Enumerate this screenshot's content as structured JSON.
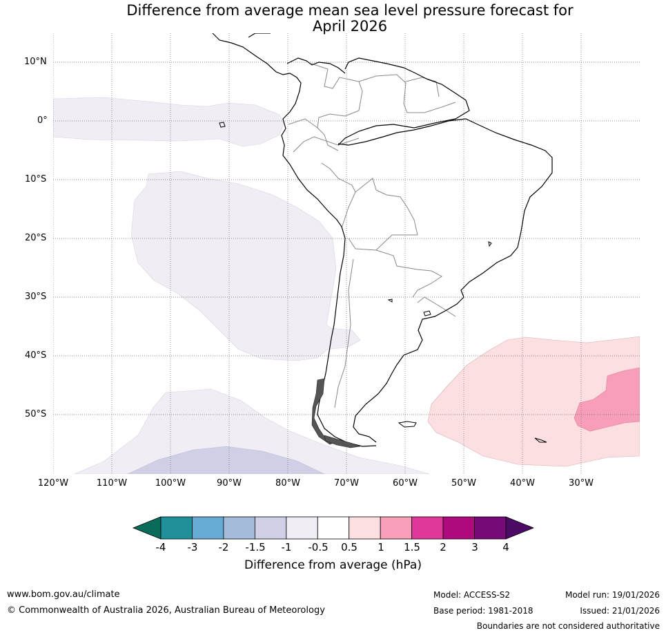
{
  "title": {
    "line1": "Difference from average mean sea level pressure forecast for",
    "line2": "April 2026"
  },
  "map": {
    "latitude_labels": [
      "10°N",
      "0°",
      "10°S",
      "20°S",
      "30°S",
      "40°S",
      "50°S"
    ],
    "longitude_labels": [
      "120°W",
      "110°W",
      "100°W",
      "90°W",
      "80°W",
      "70°W",
      "60°W",
      "50°W",
      "40°W",
      "30°W"
    ],
    "anomaly_regions": [
      {
        "description": "equatorial Pacific",
        "range": "-1 to -0.5",
        "color": "#f1edf5"
      },
      {
        "description": "southeast Pacific",
        "range": "-1 to -0.5",
        "color": "#f1edf5"
      },
      {
        "description": "far south Pacific",
        "range": "-1 to -0.5",
        "color": "#f1edf5"
      },
      {
        "description": "far south Pacific core",
        "range": "-1.5 to -1",
        "color": "#cfd0e6"
      },
      {
        "description": "south Atlantic",
        "range": "0.5 to 1",
        "color": "#fcdfe1"
      },
      {
        "description": "south Atlantic core",
        "range": "1 to 1.5",
        "color": "#f79fb8"
      }
    ]
  },
  "colorbar": {
    "ticks": [
      "-4",
      "-3",
      "-2",
      "-1.5",
      "-1",
      "-0.5",
      "0.5",
      "1",
      "1.5",
      "2",
      "3",
      "4"
    ],
    "low_extend_color": "#0b6b5b",
    "high_extend_color": "#4a0a66",
    "bin_colors": [
      "#1f9099",
      "#65abd4",
      "#a4bcd9",
      "#cfd0e6",
      "#f1edf5",
      "#ffffff",
      "#fcdfe1",
      "#f79fb8",
      "#e0379a",
      "#ae0a7d",
      "#780a77"
    ],
    "title": "Difference from average (hPa)"
  },
  "footer": {
    "website": "www.bom.gov.au/climate",
    "copyright": "© Commonwealth of Australia 2026, Australian Bureau of Meteorology",
    "model": "Model: ACCESS-S2",
    "base_period": "Base period: 1981-2018",
    "model_run": "Model run: 19/01/2026",
    "issued": "Issued: 21/01/2026",
    "disclaimer": "Boundaries are not considered authoritative"
  }
}
